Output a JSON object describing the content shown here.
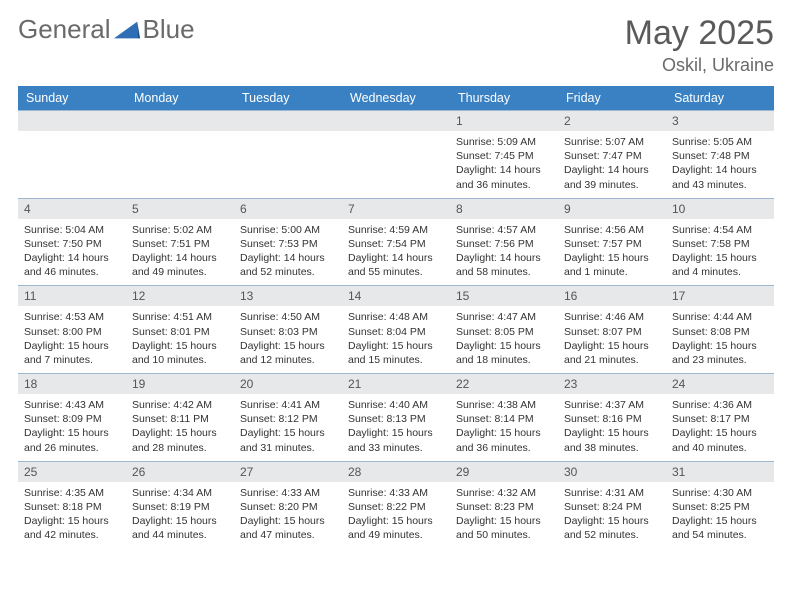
{
  "brand": {
    "part1": "General",
    "part2": "Blue"
  },
  "title": "May 2025",
  "location": "Oskil, Ukraine",
  "colors": {
    "header_bg": "#3a81c4",
    "daynum_bg": "#e7e8e9",
    "rule": "#9db7d1",
    "text": "#3a3a3a",
    "title": "#5a5a5a"
  },
  "weekdays": [
    "Sunday",
    "Monday",
    "Tuesday",
    "Wednesday",
    "Thursday",
    "Friday",
    "Saturday"
  ],
  "layout": {
    "columns": 7,
    "rows": 5,
    "cell_blanks_start": 4
  },
  "days": [
    {
      "n": "",
      "blank": true
    },
    {
      "n": "",
      "blank": true
    },
    {
      "n": "",
      "blank": true
    },
    {
      "n": "",
      "blank": true
    },
    {
      "n": "1",
      "sr": "5:09 AM",
      "ss": "7:45 PM",
      "dl": "14 hours and 36 minutes."
    },
    {
      "n": "2",
      "sr": "5:07 AM",
      "ss": "7:47 PM",
      "dl": "14 hours and 39 minutes."
    },
    {
      "n": "3",
      "sr": "5:05 AM",
      "ss": "7:48 PM",
      "dl": "14 hours and 43 minutes."
    },
    {
      "n": "4",
      "sr": "5:04 AM",
      "ss": "7:50 PM",
      "dl": "14 hours and 46 minutes."
    },
    {
      "n": "5",
      "sr": "5:02 AM",
      "ss": "7:51 PM",
      "dl": "14 hours and 49 minutes."
    },
    {
      "n": "6",
      "sr": "5:00 AM",
      "ss": "7:53 PM",
      "dl": "14 hours and 52 minutes."
    },
    {
      "n": "7",
      "sr": "4:59 AM",
      "ss": "7:54 PM",
      "dl": "14 hours and 55 minutes."
    },
    {
      "n": "8",
      "sr": "4:57 AM",
      "ss": "7:56 PM",
      "dl": "14 hours and 58 minutes."
    },
    {
      "n": "9",
      "sr": "4:56 AM",
      "ss": "7:57 PM",
      "dl": "15 hours and 1 minute."
    },
    {
      "n": "10",
      "sr": "4:54 AM",
      "ss": "7:58 PM",
      "dl": "15 hours and 4 minutes."
    },
    {
      "n": "11",
      "sr": "4:53 AM",
      "ss": "8:00 PM",
      "dl": "15 hours and 7 minutes."
    },
    {
      "n": "12",
      "sr": "4:51 AM",
      "ss": "8:01 PM",
      "dl": "15 hours and 10 minutes."
    },
    {
      "n": "13",
      "sr": "4:50 AM",
      "ss": "8:03 PM",
      "dl": "15 hours and 12 minutes."
    },
    {
      "n": "14",
      "sr": "4:48 AM",
      "ss": "8:04 PM",
      "dl": "15 hours and 15 minutes."
    },
    {
      "n": "15",
      "sr": "4:47 AM",
      "ss": "8:05 PM",
      "dl": "15 hours and 18 minutes."
    },
    {
      "n": "16",
      "sr": "4:46 AM",
      "ss": "8:07 PM",
      "dl": "15 hours and 21 minutes."
    },
    {
      "n": "17",
      "sr": "4:44 AM",
      "ss": "8:08 PM",
      "dl": "15 hours and 23 minutes."
    },
    {
      "n": "18",
      "sr": "4:43 AM",
      "ss": "8:09 PM",
      "dl": "15 hours and 26 minutes."
    },
    {
      "n": "19",
      "sr": "4:42 AM",
      "ss": "8:11 PM",
      "dl": "15 hours and 28 minutes."
    },
    {
      "n": "20",
      "sr": "4:41 AM",
      "ss": "8:12 PM",
      "dl": "15 hours and 31 minutes."
    },
    {
      "n": "21",
      "sr": "4:40 AM",
      "ss": "8:13 PM",
      "dl": "15 hours and 33 minutes."
    },
    {
      "n": "22",
      "sr": "4:38 AM",
      "ss": "8:14 PM",
      "dl": "15 hours and 36 minutes."
    },
    {
      "n": "23",
      "sr": "4:37 AM",
      "ss": "8:16 PM",
      "dl": "15 hours and 38 minutes."
    },
    {
      "n": "24",
      "sr": "4:36 AM",
      "ss": "8:17 PM",
      "dl": "15 hours and 40 minutes."
    },
    {
      "n": "25",
      "sr": "4:35 AM",
      "ss": "8:18 PM",
      "dl": "15 hours and 42 minutes."
    },
    {
      "n": "26",
      "sr": "4:34 AM",
      "ss": "8:19 PM",
      "dl": "15 hours and 44 minutes."
    },
    {
      "n": "27",
      "sr": "4:33 AM",
      "ss": "8:20 PM",
      "dl": "15 hours and 47 minutes."
    },
    {
      "n": "28",
      "sr": "4:33 AM",
      "ss": "8:22 PM",
      "dl": "15 hours and 49 minutes."
    },
    {
      "n": "29",
      "sr": "4:32 AM",
      "ss": "8:23 PM",
      "dl": "15 hours and 50 minutes."
    },
    {
      "n": "30",
      "sr": "4:31 AM",
      "ss": "8:24 PM",
      "dl": "15 hours and 52 minutes."
    },
    {
      "n": "31",
      "sr": "4:30 AM",
      "ss": "8:25 PM",
      "dl": "15 hours and 54 minutes."
    }
  ],
  "labels": {
    "sunrise": "Sunrise:",
    "sunset": "Sunset:",
    "daylight": "Daylight:"
  }
}
